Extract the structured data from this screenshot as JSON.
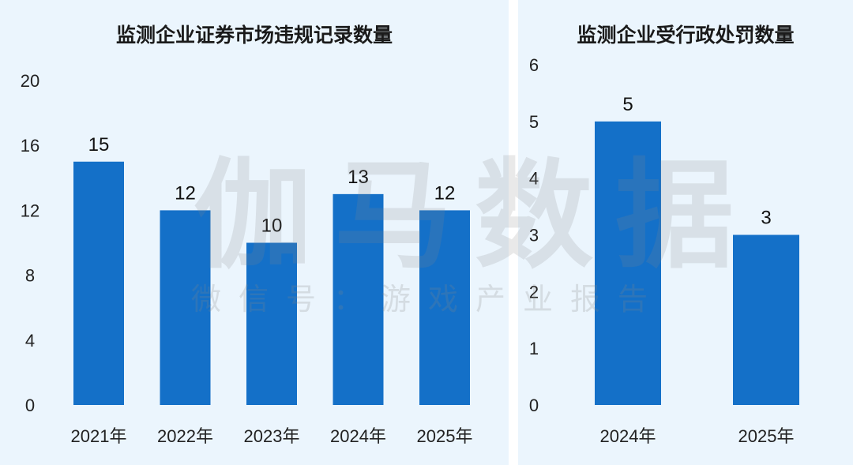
{
  "chart_data": [
    {
      "type": "bar",
      "title": "监测企业证券市场违规记录数量",
      "categories": [
        "2021年",
        "2022年",
        "2023年",
        "2024年",
        "2025年"
      ],
      "values": [
        15,
        12,
        10,
        13,
        12
      ],
      "ylim": [
        0,
        20
      ],
      "yticks": [
        0,
        4,
        8,
        12,
        16,
        20
      ],
      "grid": false,
      "bar_color": "#1470c8"
    },
    {
      "type": "bar",
      "title": "监测企业受行政处罚数量",
      "categories": [
        "2024年",
        "2025年"
      ],
      "values": [
        5,
        3
      ],
      "ylim": [
        0,
        6
      ],
      "yticks": [
        0,
        1,
        2,
        3,
        4,
        5,
        6
      ],
      "grid": false,
      "bar_color": "#1470c8"
    }
  ],
  "watermark": {
    "main": "伽马数据",
    "sub": "微信号：游戏产业报告"
  },
  "colors": {
    "panel_bg": "#ebf5fd",
    "bar": "#1470c8"
  }
}
